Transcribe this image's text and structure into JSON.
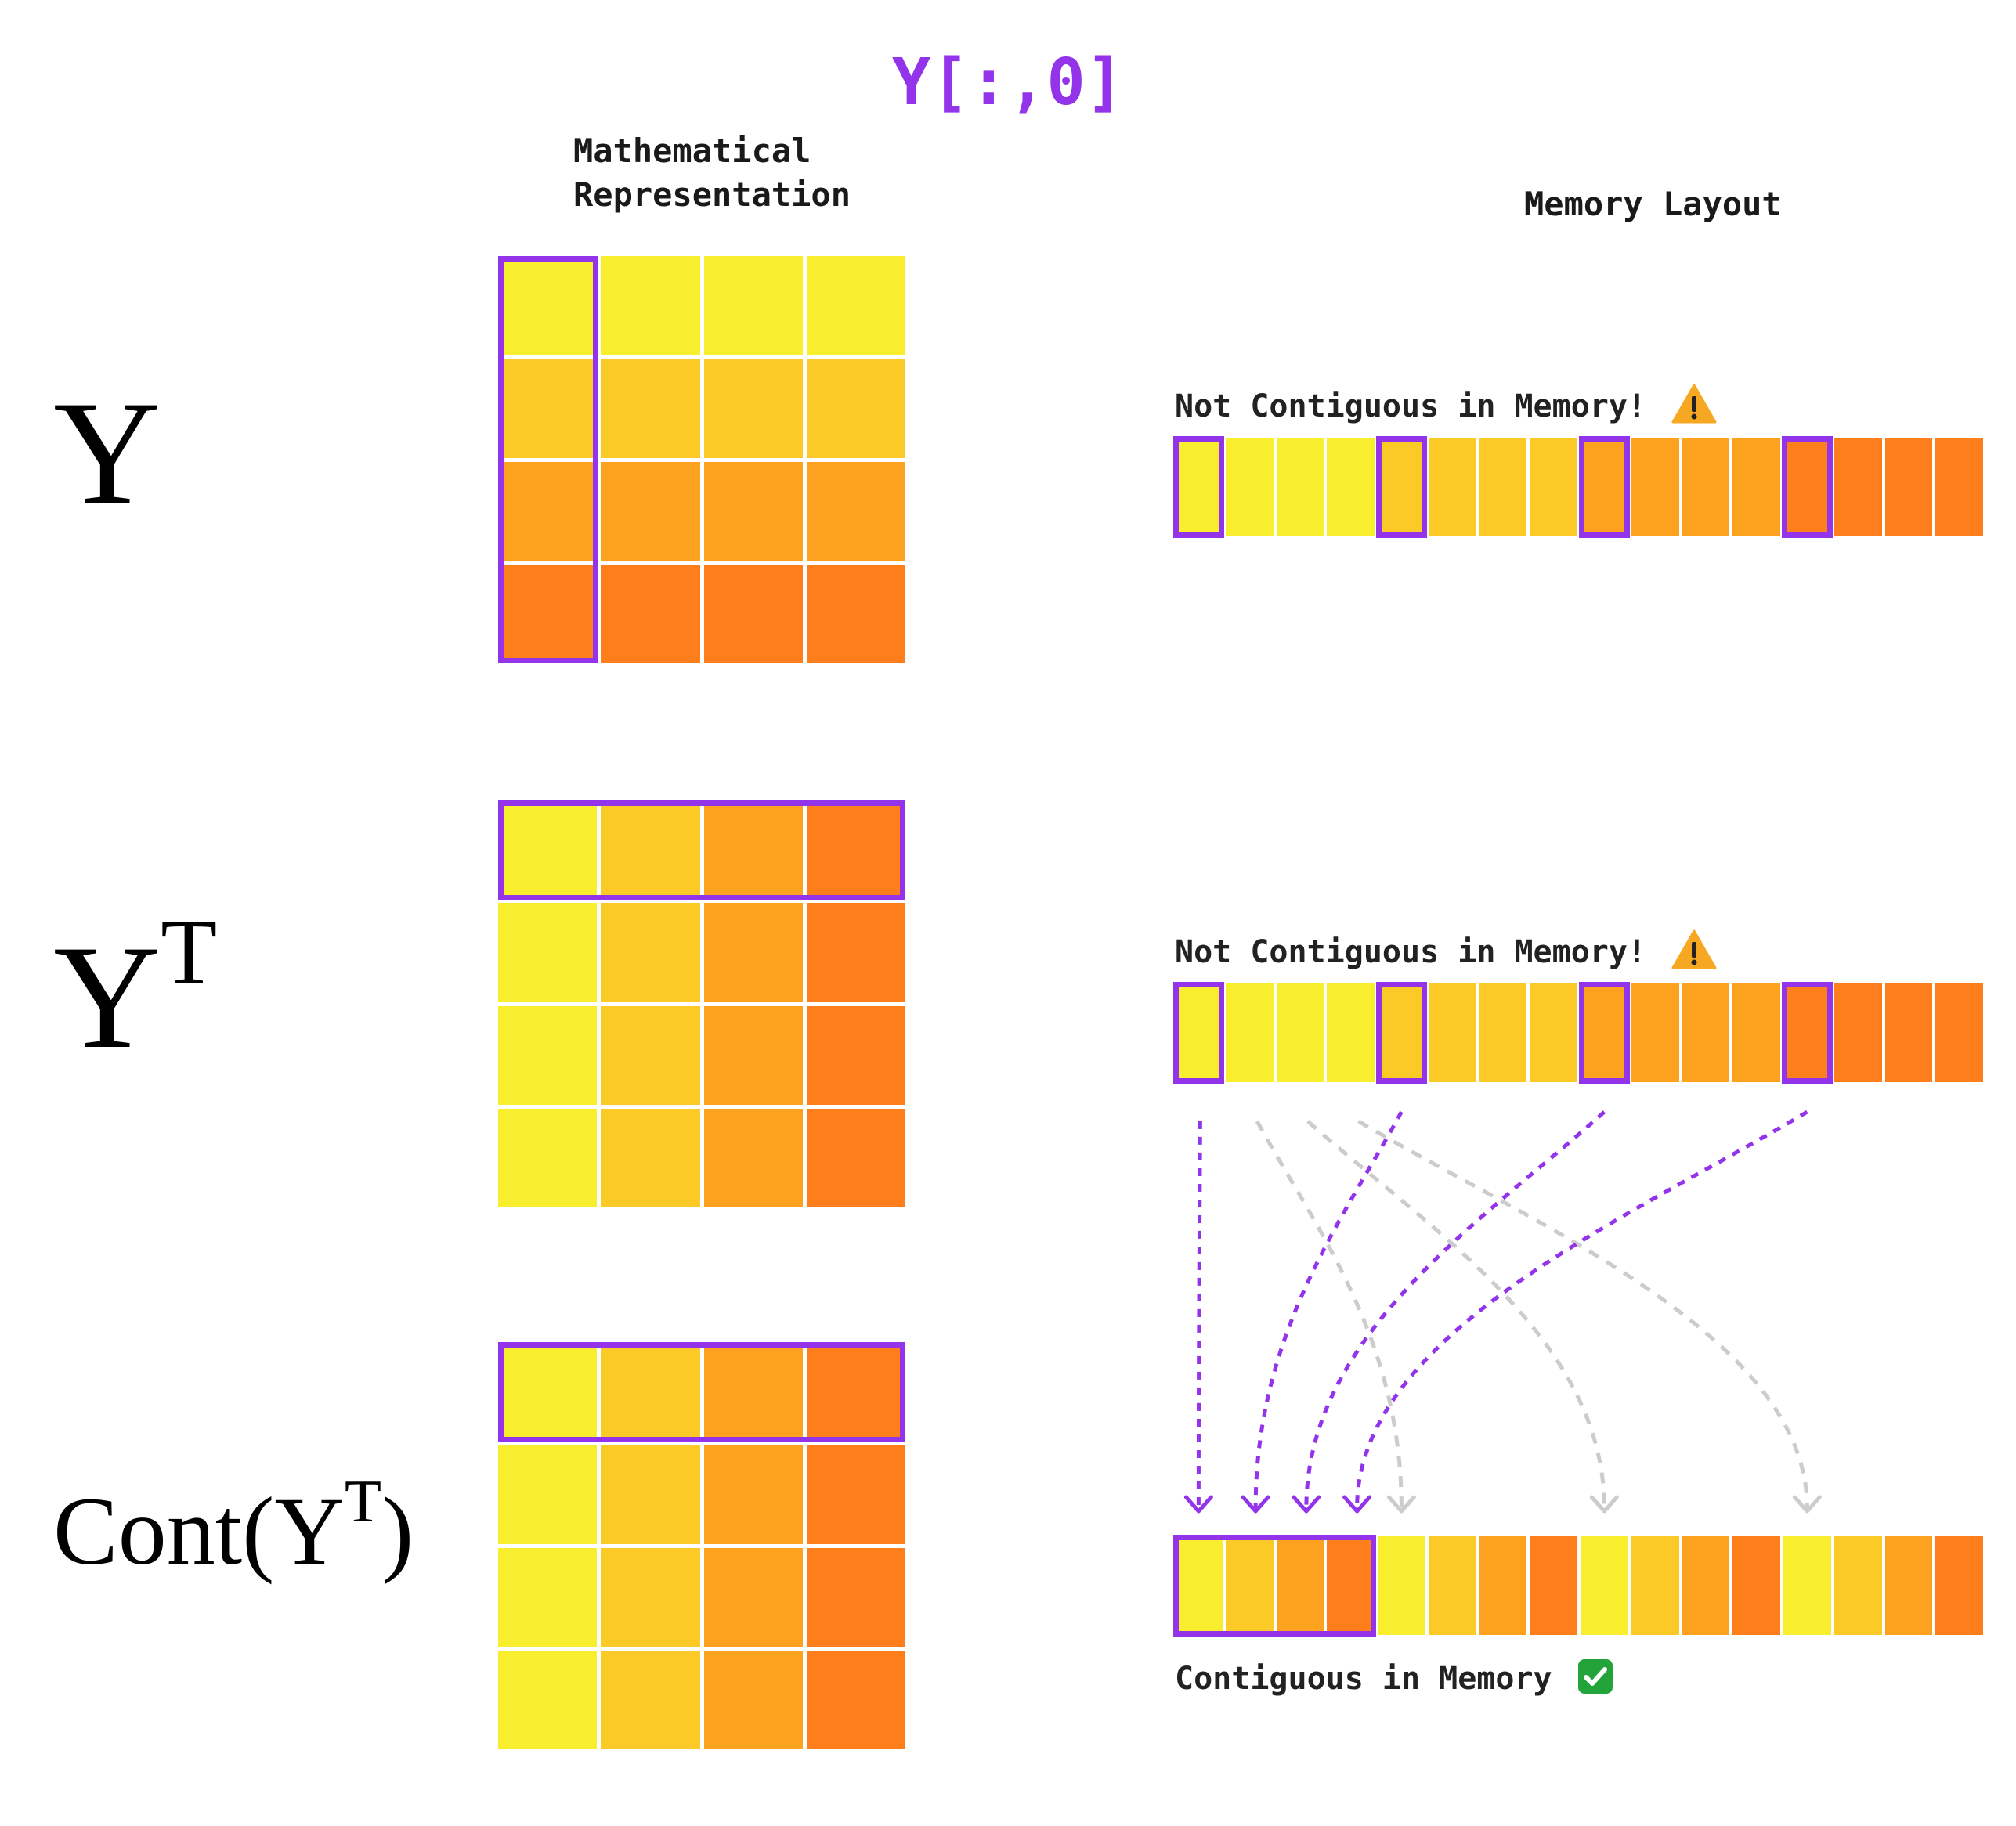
{
  "title": "Y[:,0]",
  "headers": {
    "math_line1": "Mathematical",
    "math_line2": "Representation",
    "memory": "Memory Layout"
  },
  "rows": [
    {
      "symbol": "Y",
      "symbol_sup": "",
      "symbol_suffix": "",
      "status": "Not Contiguous in Memory!",
      "status_icon": "warning-icon"
    },
    {
      "symbol": "Y",
      "symbol_sup": "T",
      "symbol_suffix": "",
      "status": "Not Contiguous in Memory!",
      "status_icon": "warning-icon"
    },
    {
      "symbol": "Cont(Y",
      "symbol_sup": "T",
      "symbol_suffix": ")",
      "status": "Contiguous in Memory",
      "status_icon": "check-icon"
    }
  ],
  "colors": {
    "accent": "#9333ea",
    "shade": [
      "#f8ee2e",
      "#fbca26",
      "#fca21f",
      "#fd7e1a"
    ],
    "gray_arrow": "#cccccc",
    "warning": "#f7a823",
    "check": "#22a43a"
  }
}
